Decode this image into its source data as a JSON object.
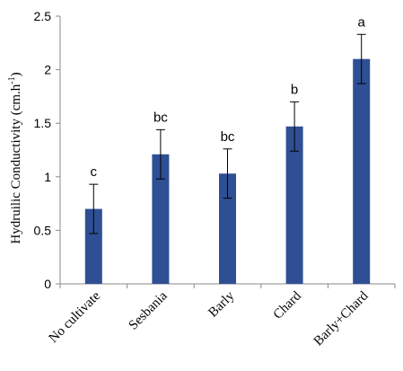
{
  "chart_data": {
    "type": "bar",
    "categories": [
      "No cultivate",
      "Sesbania",
      "Barly",
      "Chard",
      "Barly+Chard"
    ],
    "values": [
      0.7,
      1.21,
      1.03,
      1.47,
      2.1
    ],
    "error": [
      0.23,
      0.23,
      0.23,
      0.23,
      0.23
    ],
    "significance": [
      "c",
      "bc",
      "bc",
      "b",
      "a"
    ],
    "ylabel_main": "Hydruilic Conductivity (cm.h",
    "ylabel_sup": "-1",
    "ylabel_close": ")",
    "ylim": [
      0,
      2.5
    ],
    "yticks": [
      "0",
      "0.5",
      "1",
      "1.5",
      "2",
      "2.5"
    ],
    "bar_color": "#2f4f94",
    "grid": false,
    "legend": "none"
  }
}
